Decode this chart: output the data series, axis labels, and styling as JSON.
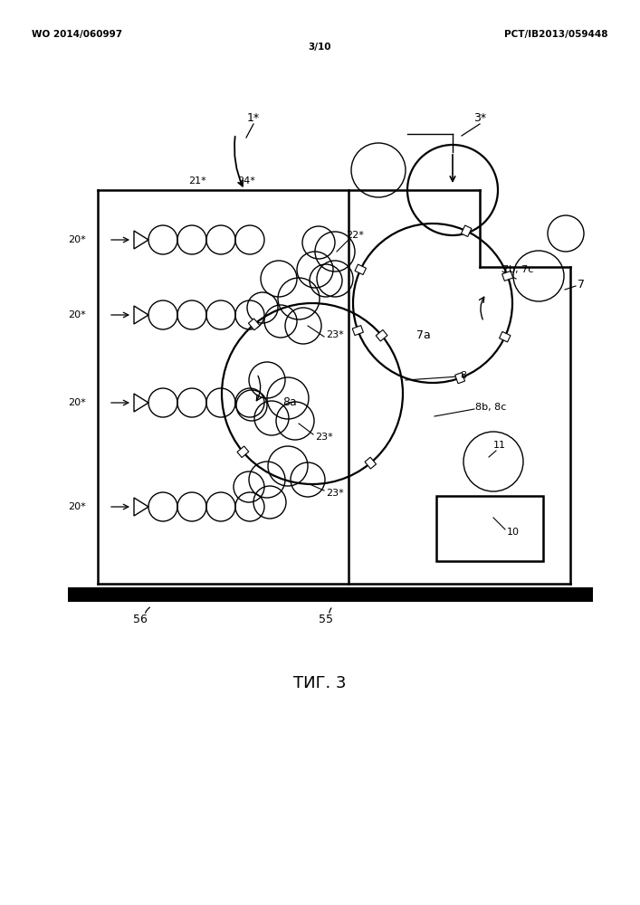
{
  "title": "ΤИГ. 3",
  "header_left": "WO 2014/060997",
  "header_center": "3/10",
  "header_right": "PCT/IB2013/059448",
  "bg_color": "#ffffff",
  "fig_width": 7.07,
  "fig_height": 10.0
}
